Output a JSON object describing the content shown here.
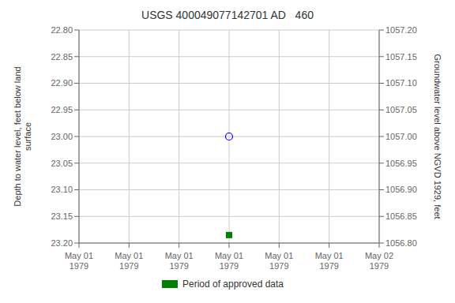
{
  "chart_data": {
    "type": "scatter",
    "title": "USGS 400049077142701 AD   460",
    "y_label": "Depth to water level, feet below land\nsurface",
    "y2_label": "Groundwater level above NGVD 1929, feet",
    "categories": [
      "May 01\n1979",
      "May 01\n1979",
      "May 01\n1979",
      "May 01\n1979",
      "May 01\n1979",
      "May 01\n1979",
      "May 02\n1979"
    ],
    "series": [
      {
        "color": "#0000ff",
        "marker": "hollow_circle",
        "values": [
          null,
          null,
          null,
          23.0,
          null,
          null,
          null
        ]
      },
      {
        "name": "Period of approved data",
        "color": "#008000",
        "marker": "square",
        "values": [
          null,
          null,
          null,
          23.185,
          null,
          null,
          null
        ]
      }
    ],
    "ylim": [
      23.2,
      22.8
    ],
    "yticks": [
      {
        "value": 22.8,
        "label": "22.80"
      },
      22.85,
      {
        "value": 22.9,
        "label": "22.90"
      },
      22.95,
      {
        "value": 23.0,
        "label": "23.00"
      },
      23.05,
      {
        "value": 23.1,
        "label": "23.10"
      },
      23.15,
      {
        "value": 23.2,
        "label": "23.20"
      }
    ],
    "y2lim": [
      1056.8,
      1057.2
    ],
    "y2ticks": [
      {
        "value": 1057.2,
        "label": "1057.20"
      },
      1057.15,
      {
        "value": 1057.1,
        "label": "1057.10"
      },
      1057.05,
      {
        "value": 1057.0,
        "label": "1057.00"
      },
      1056.95,
      {
        "value": 1056.9,
        "label": "1056.90"
      },
      1056.85,
      {
        "value": 1056.8,
        "label": "1056.80"
      }
    ],
    "grid": true,
    "legend": "bottom"
  }
}
